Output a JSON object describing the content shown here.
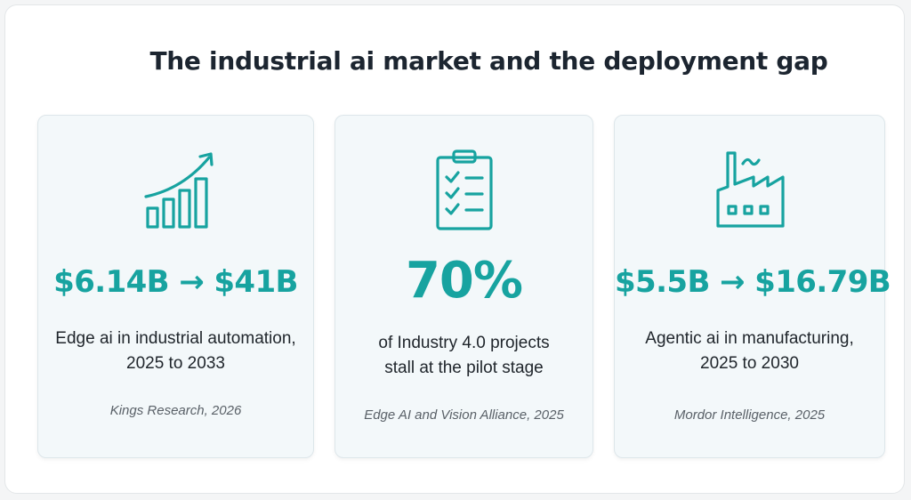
{
  "title": "The industrial ai market and the deployment gap",
  "accent_color": "#17a3a0",
  "cards": [
    {
      "icon": "growth-chart-icon",
      "stat": "$6.14B → $41B",
      "description_lines": [
        "Edge ai in industrial automation,",
        "2025 to 2033"
      ],
      "source": "Kings Research, 2026"
    },
    {
      "icon": "clipboard-checklist-icon",
      "stat": "70%",
      "description_lines": [
        "of Industry 4.0 projects",
        "stall at the pilot stage"
      ],
      "source": "Edge AI and Vision Alliance, 2025"
    },
    {
      "icon": "factory-icon",
      "stat": "$5.5B → $16.79B",
      "description_lines": [
        "Agentic ai in manufacturing,",
        "2025 to 2030"
      ],
      "source": "Mordor Intelligence, 2025"
    }
  ]
}
